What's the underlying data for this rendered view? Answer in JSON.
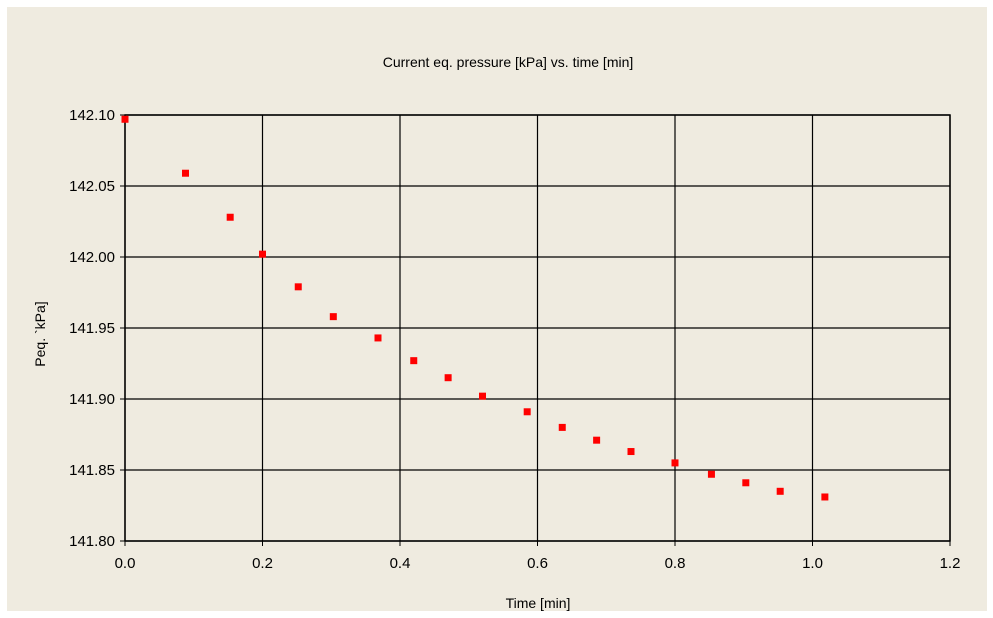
{
  "chart_data": {
    "type": "scatter",
    "title": "Current eq. pressure [kPa] vs. time [min]",
    "xlabel": "Time [min]",
    "ylabel": "Peq. `kPa]",
    "xlim": [
      0,
      1.2
    ],
    "ylim": [
      141.8,
      142.1
    ],
    "x_ticks": [
      "0.0",
      "0.2",
      "0.4",
      "0.6",
      "0.8",
      "1.0",
      "1.2"
    ],
    "y_ticks": [
      "141.80",
      "141.85",
      "141.90",
      "141.95",
      "142.00",
      "142.05",
      "142.10"
    ],
    "grid": true,
    "marker_color": "#ff0000",
    "series": [
      {
        "x": [
          0.0,
          0.088,
          0.153,
          0.2,
          0.252,
          0.303,
          0.368,
          0.42,
          0.47,
          0.52,
          0.585,
          0.636,
          0.686,
          0.736,
          0.8,
          0.853,
          0.903,
          0.953,
          1.018
        ],
        "y": [
          142.097,
          142.059,
          142.028,
          142.002,
          141.979,
          141.958,
          141.943,
          141.927,
          141.915,
          141.902,
          141.891,
          141.88,
          141.871,
          141.863,
          141.855,
          141.847,
          141.841,
          141.835,
          141.831
        ]
      }
    ]
  }
}
